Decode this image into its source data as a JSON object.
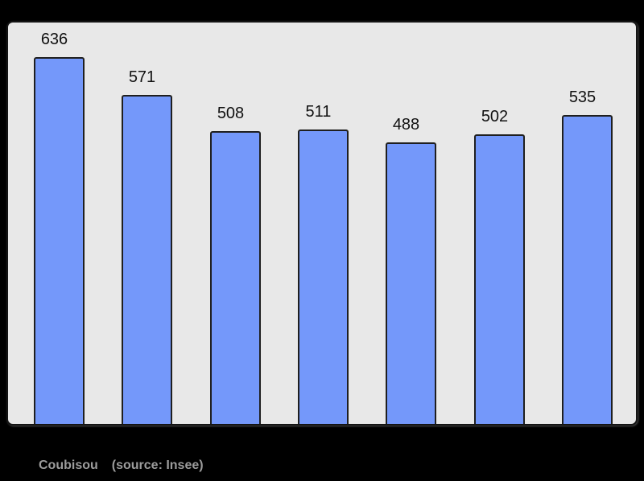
{
  "chart_data": {
    "type": "bar",
    "title": "",
    "xlabel": "",
    "ylabel": "",
    "values": [
      636,
      571,
      508,
      511,
      488,
      502,
      535
    ],
    "categories": [
      "",
      "",
      "",
      "",
      "",
      "",
      ""
    ],
    "data_labels_visible": true,
    "baseline": 0,
    "grid": false,
    "legend": "none",
    "axes_visible": false,
    "caption_left": "Coubisou",
    "caption_right": "(source: Insee)",
    "colors": {
      "page_background": "#000000",
      "plot_background": "#e8e8e8",
      "frame_border": "#141414",
      "bar_fill": "#7498fa",
      "bar_border": "#1f1f1f",
      "value_label": "#111111",
      "caption": "#9c9c9c"
    }
  }
}
